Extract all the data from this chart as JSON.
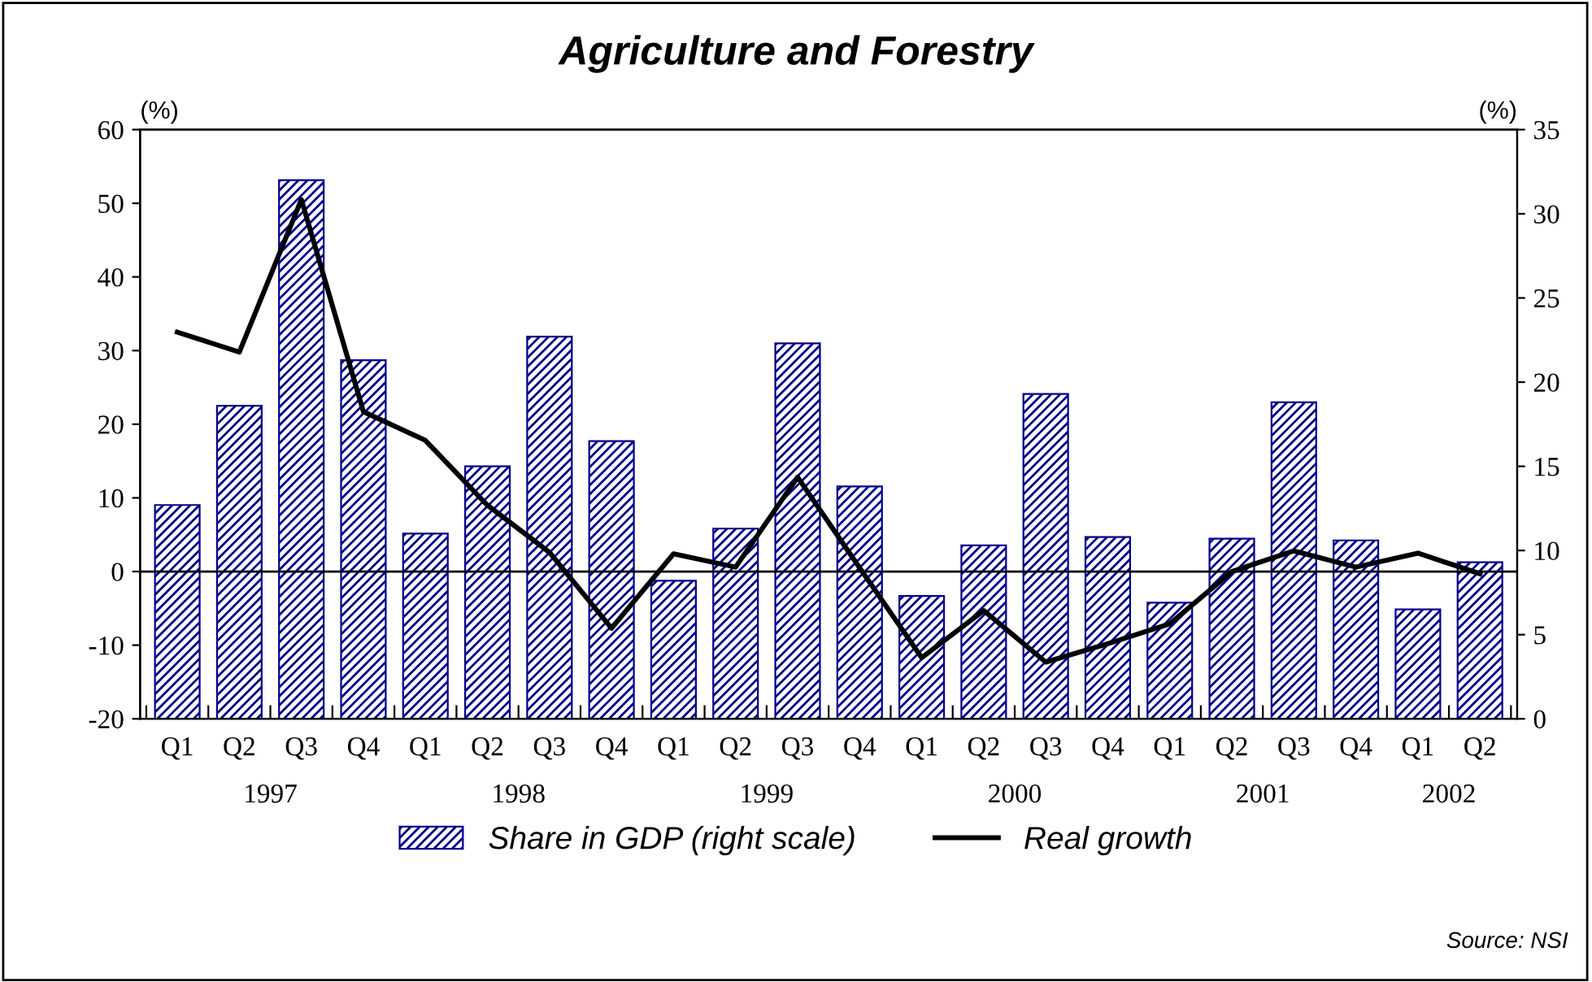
{
  "chart_data": {
    "type": "bar",
    "title": "Agriculture and Forestry",
    "ylabel": "(%)",
    "y2label": "(%)",
    "categories": [
      "Q1",
      "Q2",
      "Q3",
      "Q4",
      "Q1",
      "Q2",
      "Q3",
      "Q4",
      "Q1",
      "Q2",
      "Q3",
      "Q4",
      "Q1",
      "Q2",
      "Q3",
      "Q4",
      "Q1",
      "Q2",
      "Q3",
      "Q4",
      "Q1",
      "Q2"
    ],
    "series": [
      {
        "name": "Share in GDP (right scale)",
        "axis": "y2",
        "color": "#00008b",
        "values": [
          12.7,
          18.6,
          32.0,
          21.3,
          11.0,
          15.0,
          22.7,
          16.5,
          8.2,
          11.3,
          22.3,
          13.8,
          7.3,
          10.3,
          19.3,
          10.8,
          6.9,
          10.7,
          18.8,
          10.6,
          6.5,
          9.3
        ]
      },
      {
        "name": "Real growth",
        "type": "line",
        "axis": "y",
        "color": "#000000",
        "values": [
          32.5,
          29.8,
          50.5,
          21.7,
          17.8,
          9.0,
          2.6,
          -7.7,
          2.4,
          0.6,
          12.8,
          0.5,
          -11.7,
          -5.3,
          -12.3,
          -9.8,
          -7.1,
          0.0,
          2.8,
          0.6,
          2.5,
          -0.3
        ]
      }
    ],
    "ylim": [
      -20,
      60
    ],
    "yticks": [
      -20,
      -10,
      0,
      10,
      20,
      30,
      40,
      50,
      60
    ],
    "y2lim": [
      0,
      35
    ],
    "y2ticks": [
      0,
      5,
      10,
      15,
      20,
      25,
      30,
      35
    ],
    "ref_lines": [
      {
        "axis": "y",
        "value": 0,
        "color": "#000000"
      }
    ],
    "annotations": [
      "1997",
      "1998",
      "1999",
      "2000",
      "2001",
      "2002",
      "Source: NSI"
    ],
    "grid": false,
    "legend": "bottom",
    "marker": "none",
    "line_style": "solid"
  }
}
